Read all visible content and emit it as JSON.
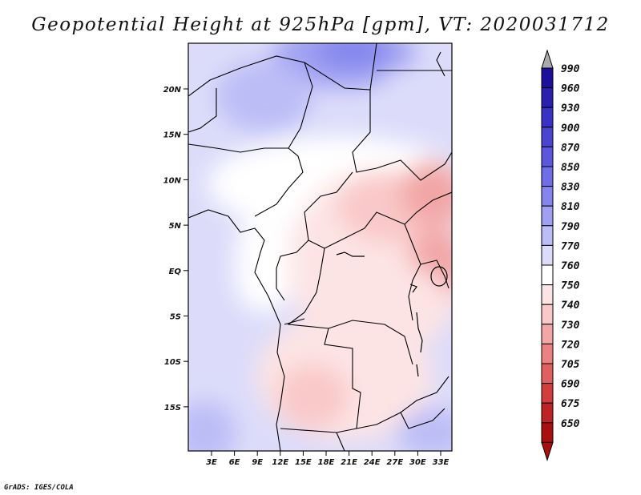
{
  "title": "Geopotential Height at 925hPa [gpm], VT: 2020031712",
  "credit": "GrADS: IGES/COLA",
  "map": {
    "lat_ticks": [
      "20N",
      "15N",
      "10N",
      "5N",
      "EQ",
      "5S",
      "10S",
      "15S"
    ],
    "lon_ticks": [
      "3E",
      "6E",
      "9E",
      "12E",
      "15E",
      "18E",
      "21E",
      "24E",
      "27E",
      "30E",
      "33E"
    ]
  },
  "colorbar": {
    "levels": [
      "990",
      "960",
      "930",
      "900",
      "870",
      "850",
      "830",
      "810",
      "790",
      "770",
      "760",
      "750",
      "740",
      "730",
      "720",
      "705",
      "690",
      "675",
      "650"
    ],
    "colors": [
      "#1c0f9a",
      "#2b1fb0",
      "#3a32c4",
      "#4a44d2",
      "#5b58dd",
      "#6e6ee6",
      "#8485ed",
      "#9fa0f2",
      "#bcbdf6",
      "#dcdcfa",
      "#ffffff",
      "#fde4e4",
      "#f9c8c8",
      "#f2a6a6",
      "#ea8282",
      "#e05f5f",
      "#d23e3e",
      "#bf2424",
      "#a81010"
    ],
    "top_color": "#aaaaaa"
  }
}
